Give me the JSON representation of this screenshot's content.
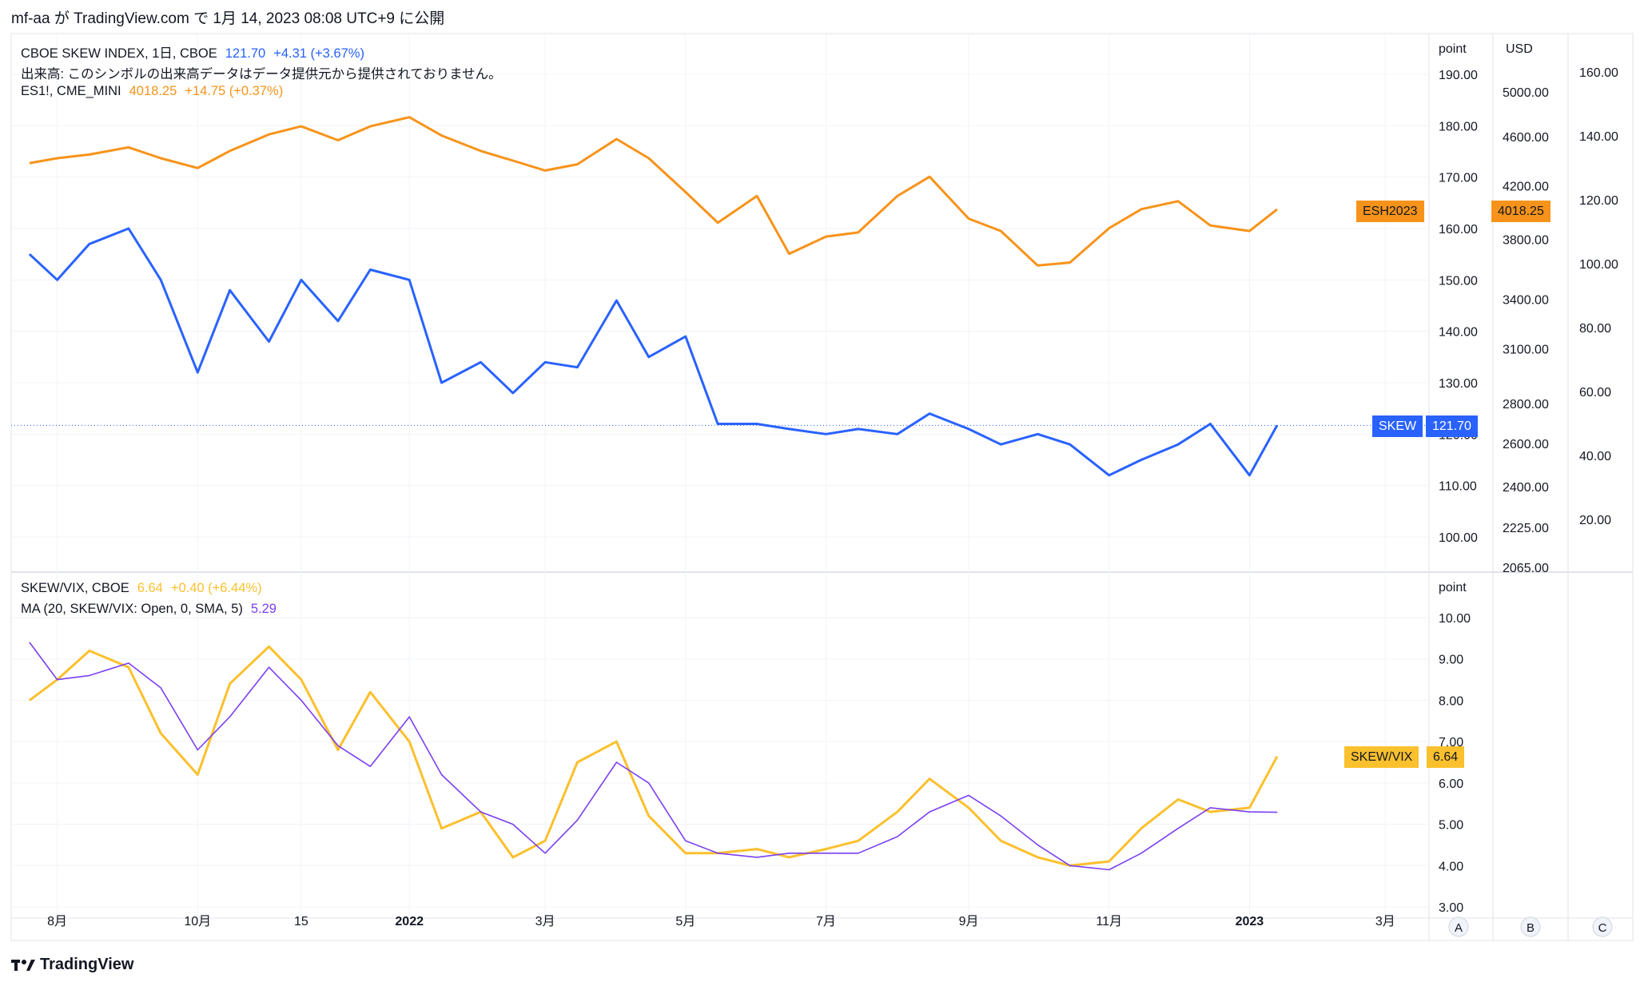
{
  "header": {
    "text": "mf-aa が TradingView.com で 1月 14, 2023 08:08 UTC+9 に公開"
  },
  "footer": {
    "brand": "TradingView"
  },
  "colors": {
    "skew": "#2962ff",
    "es": "#f7931a",
    "ratio": "#fbc02d",
    "ma": "#7b3ff2",
    "grid": "#e0e3eb",
    "axis_text": "#131722"
  },
  "legend_top": {
    "line1": {
      "title": "CBOE SKEW INDEX, 1日, CBOE",
      "value": "121.70",
      "change": "+4.31 (+3.67%)"
    },
    "line2": {
      "text": "出来高: このシンボルの出来高データはデータ提供元から提供されておりません。"
    },
    "line3": {
      "title": "ES1!, CME_MINI",
      "value": "4018.25",
      "change": "+14.75 (+0.37%)"
    }
  },
  "legend_bottom": {
    "line1": {
      "title": "SKEW/VIX, CBOE",
      "value": "6.64",
      "change": "+0.40 (+6.44%)"
    },
    "line2": {
      "title": "MA (20, SKEW/VIX: Open, 0, SMA, 5)",
      "value": "5.29"
    }
  },
  "scales": {
    "top_unit": "point",
    "usd_unit": "USD",
    "bottom_unit": "point",
    "buttons": [
      "A",
      "B",
      "C"
    ]
  },
  "tags": {
    "es_name": "ESH2023",
    "es_value": "4018.25",
    "skew_name": "SKEW",
    "skew_value": "121.70",
    "ratio_name": "SKEW/VIX",
    "ratio_value": "6.64"
  },
  "chart_data": [
    {
      "type": "line",
      "title": "CBOE SKEW INDEX, 1日, CBOE",
      "x_ticks": [
        "8月",
        "10月",
        "15",
        "2022",
        "3月",
        "5月",
        "7月",
        "9月",
        "11月",
        "2023",
        "3月"
      ],
      "y_ticks_left": [
        "190.00",
        "180.00",
        "170.00",
        "160.00",
        "150.00",
        "140.00",
        "130.00",
        "120.00",
        "110.00",
        "100.00"
      ],
      "y_ticks_usd": [
        "5000.00",
        "4600.00",
        "4200.00",
        "3800.00",
        "3400.00",
        "3100.00",
        "2800.00",
        "2600.00",
        "2400.00",
        "2225.00",
        "2065.00"
      ],
      "y_ticks_right": [
        "160.00",
        "140.00",
        "120.00",
        "100.00",
        "80.00",
        "60.00",
        "40.00",
        "20.00"
      ],
      "series": [
        {
          "name": "SKEW",
          "x": [
            "2021-07-20",
            "2021-08-01",
            "2021-08-15",
            "2021-09-01",
            "2021-09-15",
            "2021-10-01",
            "2021-10-15",
            "2021-11-01",
            "2021-11-15",
            "2021-12-01",
            "2021-12-15",
            "2022-01-01",
            "2022-01-15",
            "2022-02-01",
            "2022-02-15",
            "2022-03-01",
            "2022-03-15",
            "2022-04-01",
            "2022-04-15",
            "2022-05-01",
            "2022-05-15",
            "2022-06-01",
            "2022-06-15",
            "2022-07-01",
            "2022-07-15",
            "2022-08-01",
            "2022-08-15",
            "2022-09-01",
            "2022-09-15",
            "2022-10-01",
            "2022-10-15",
            "2022-11-01",
            "2022-11-15",
            "2022-12-01",
            "2022-12-15",
            "2023-01-01",
            "2023-01-13"
          ],
          "values": [
            155,
            150,
            157,
            160,
            150,
            132,
            148,
            138,
            150,
            142,
            152,
            150,
            130,
            134,
            128,
            134,
            133,
            146,
            135,
            139,
            122,
            122,
            121,
            120,
            121,
            120,
            124,
            121,
            118,
            120,
            118,
            112,
            115,
            118,
            122,
            112,
            121.7
          ]
        },
        {
          "name": "ESH2023",
          "x": [
            "2021-07-20",
            "2021-08-01",
            "2021-08-15",
            "2021-09-01",
            "2021-09-15",
            "2021-10-01",
            "2021-10-15",
            "2021-11-01",
            "2021-11-15",
            "2021-12-01",
            "2021-12-15",
            "2022-01-01",
            "2022-01-15",
            "2022-02-01",
            "2022-02-15",
            "2022-03-01",
            "2022-03-15",
            "2022-04-01",
            "2022-04-15",
            "2022-05-01",
            "2022-05-15",
            "2022-06-01",
            "2022-06-15",
            "2022-07-01",
            "2022-07-15",
            "2022-08-01",
            "2022-08-15",
            "2022-09-01",
            "2022-09-15",
            "2022-10-01",
            "2022-10-15",
            "2022-11-01",
            "2022-11-15",
            "2022-12-01",
            "2022-12-15",
            "2023-01-01",
            "2023-01-13"
          ],
          "values": [
            4380,
            4420,
            4450,
            4510,
            4420,
            4340,
            4480,
            4620,
            4690,
            4570,
            4690,
            4770,
            4610,
            4480,
            4400,
            4320,
            4370,
            4580,
            4420,
            4150,
            3920,
            4120,
            3700,
            3820,
            3850,
            4120,
            4270,
            3950,
            3860,
            3620,
            3640,
            3880,
            4020,
            4080,
            3900,
            3860,
            4018.25
          ]
        }
      ]
    },
    {
      "type": "line",
      "title": "SKEW/VIX, CBOE",
      "y_ticks": [
        "10.00",
        "9.00",
        "8.00",
        "7.00",
        "6.00",
        "5.00",
        "4.00",
        "3.00"
      ],
      "series": [
        {
          "name": "SKEW/VIX",
          "x": [
            "2021-07-20",
            "2021-08-01",
            "2021-08-15",
            "2021-09-01",
            "2021-09-15",
            "2021-10-01",
            "2021-10-15",
            "2021-11-01",
            "2021-11-15",
            "2021-12-01",
            "2021-12-15",
            "2022-01-01",
            "2022-01-15",
            "2022-02-01",
            "2022-02-15",
            "2022-03-01",
            "2022-03-15",
            "2022-04-01",
            "2022-04-15",
            "2022-05-01",
            "2022-05-15",
            "2022-06-01",
            "2022-06-15",
            "2022-07-01",
            "2022-07-15",
            "2022-08-01",
            "2022-08-15",
            "2022-09-01",
            "2022-09-15",
            "2022-10-01",
            "2022-10-15",
            "2022-11-01",
            "2022-11-15",
            "2022-12-01",
            "2022-12-15",
            "2023-01-01",
            "2023-01-13"
          ],
          "values": [
            8.0,
            8.5,
            9.2,
            8.8,
            7.2,
            6.2,
            8.4,
            9.3,
            8.5,
            6.8,
            8.2,
            7.0,
            4.9,
            5.3,
            4.2,
            4.6,
            6.5,
            7.0,
            5.2,
            4.3,
            4.3,
            4.4,
            4.2,
            4.4,
            4.6,
            5.3,
            6.1,
            5.4,
            4.6,
            4.2,
            4.0,
            4.1,
            4.9,
            5.6,
            5.3,
            5.4,
            6.64
          ]
        },
        {
          "name": "MA (20, SKEW/VIX: Open, 0, SMA, 5)",
          "x": [
            "2021-07-20",
            "2021-08-01",
            "2021-08-15",
            "2021-09-01",
            "2021-09-15",
            "2021-10-01",
            "2021-10-15",
            "2021-11-01",
            "2021-11-15",
            "2021-12-01",
            "2021-12-15",
            "2022-01-01",
            "2022-01-15",
            "2022-02-01",
            "2022-02-15",
            "2022-03-01",
            "2022-03-15",
            "2022-04-01",
            "2022-04-15",
            "2022-05-01",
            "2022-05-15",
            "2022-06-01",
            "2022-06-15",
            "2022-07-01",
            "2022-07-15",
            "2022-08-01",
            "2022-08-15",
            "2022-09-01",
            "2022-09-15",
            "2022-10-01",
            "2022-10-15",
            "2022-11-01",
            "2022-11-15",
            "2022-12-01",
            "2022-12-15",
            "2023-01-01",
            "2023-01-13"
          ],
          "values": [
            9.4,
            8.5,
            8.6,
            8.9,
            8.3,
            6.8,
            7.6,
            8.8,
            8.0,
            6.9,
            6.4,
            7.6,
            6.2,
            5.3,
            5.0,
            4.3,
            5.1,
            6.5,
            6.0,
            4.6,
            4.3,
            4.2,
            4.3,
            4.3,
            4.3,
            4.7,
            5.3,
            5.7,
            5.2,
            4.5,
            4.0,
            3.9,
            4.3,
            4.9,
            5.4,
            5.3,
            5.29
          ]
        }
      ]
    }
  ]
}
